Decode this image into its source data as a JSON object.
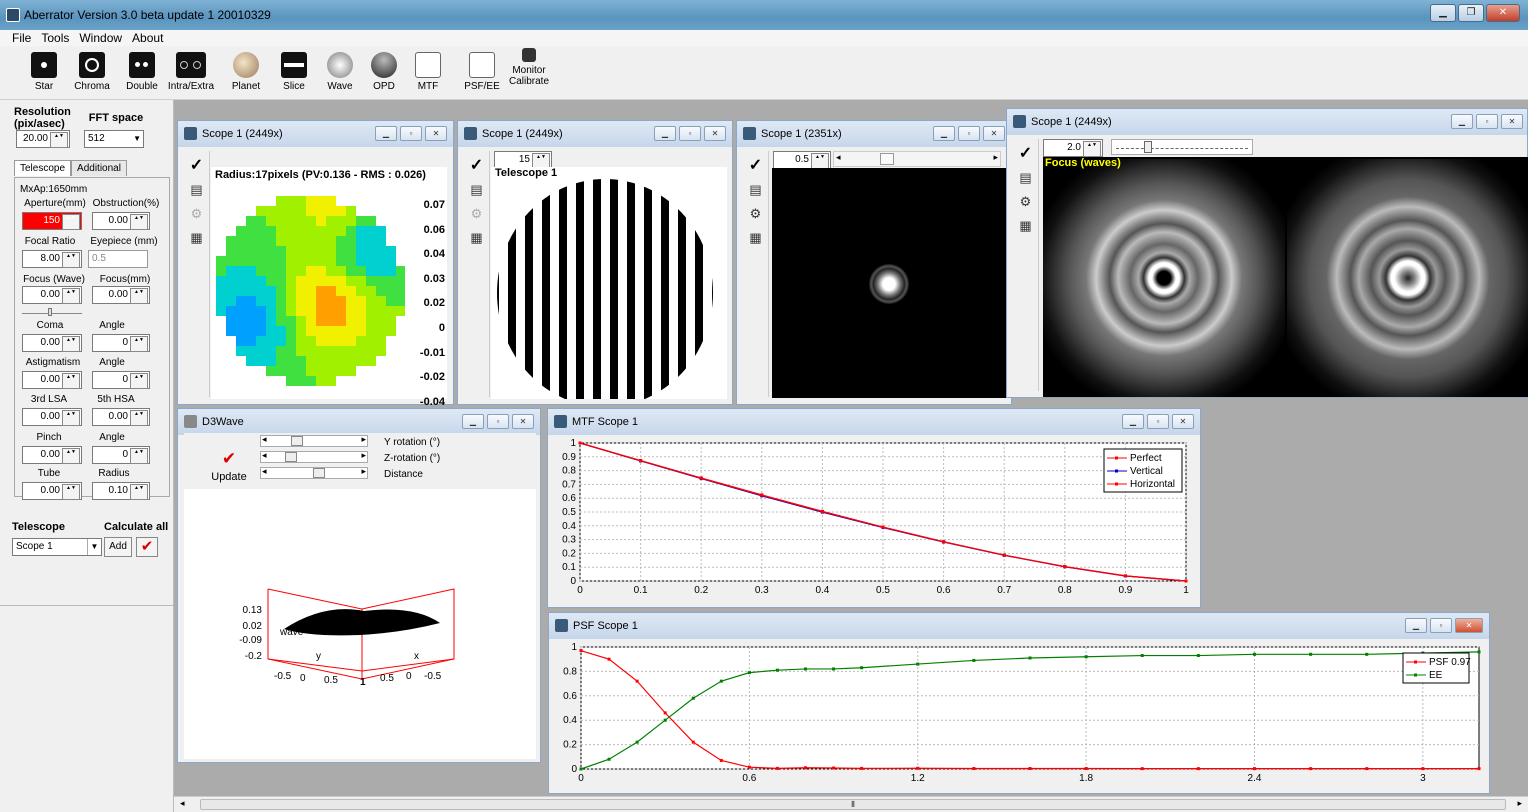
{
  "app": {
    "title": "Aberrator Version 3.0 beta update 1 20010329"
  },
  "menu": [
    "File",
    "Tools",
    "Window",
    "About"
  ],
  "toolbar": [
    "Star",
    "Chroma",
    "Double",
    "Intra/Extra",
    "Planet",
    "Slice",
    "Wave",
    "OPD",
    "MTF",
    "PSF/EE",
    "Monitor",
    "Calibrate"
  ],
  "left": {
    "resolution_label": "Resolution (pix/asec)",
    "resolution_value": "20.00",
    "fft_label": "FFT space",
    "fft_value": "512",
    "tabs": [
      "Telescope",
      "Additional"
    ],
    "maxap": "MxAp:1650mm",
    "aperture_label": "Aperture(mm)",
    "aperture_value": "150",
    "obstruction_label": "Obstruction(%)",
    "obstruction_value": "0.00",
    "focal_label": "Focal Ratio",
    "focal_value": "8.00",
    "eyepiece_label": "Eyepiece (mm)",
    "eyepiece_value": "0.5",
    "focusw_label": "Focus (Wave)",
    "focusw_value": "0.00",
    "focusmm_label": "Focus(mm)",
    "focusmm_value": "0.00",
    "coma_label": "Coma",
    "coma_value": "0.00",
    "angle1_label": "Angle",
    "angle1_value": "0",
    "astig_label": "Astigmatism",
    "astig_value": "0.00",
    "angle2_label": "Angle",
    "angle2_value": "0",
    "lsa_label": "3rd LSA",
    "lsa_value": "0.00",
    "hsa_label": "5th HSA",
    "hsa_value": "0.00",
    "pinch_label": "Pinch",
    "pinch_value": "0.00",
    "angle3_label": "Angle",
    "angle3_value": "0",
    "tube_label": "Tube",
    "tube_value": "0.00",
    "radius_label": "Radius",
    "radius_value": "0.10",
    "telescope_label": "Telescope",
    "calc_label": "Calculate all",
    "scope_select": "Scope 1",
    "add_label": "Add"
  },
  "win1": {
    "title": "Scope 1 (2449x)",
    "header": "Radius:17pixels (PV:0.136 - RMS : 0.026)",
    "scale": [
      "0.07",
      "0.06",
      "0.04",
      "0.03",
      "0.02",
      "0",
      "-0.01",
      "-0.02",
      "-0.04"
    ]
  },
  "win2": {
    "title": "Scope 1 (2449x)",
    "spin": "15",
    "label": "Telescope 1"
  },
  "win3": {
    "title": "Scope 1 (2351x)",
    "spin": "0.5"
  },
  "win4": {
    "title": "Scope 1 (2449x)",
    "spin": "2.0",
    "label": "Focus (waves)"
  },
  "d3wave": {
    "title": "D3Wave",
    "update_label": "Update",
    "sliders": [
      "Y rotation (°)",
      "Z-rotation (°)",
      "Distance"
    ],
    "zticks": [
      "0.13",
      "0.02",
      "-0.09",
      "-0.2"
    ],
    "zlabel": "wave",
    "ylabel": "y",
    "xlabel": "x",
    "yticks": [
      "-0.5",
      "0",
      "0.5"
    ],
    "xticks": [
      "0.5",
      "0",
      "-0.5"
    ],
    "center": "1"
  },
  "chart_data": [
    {
      "type": "line",
      "title": "MTF Scope 1",
      "x": [
        0,
        0.1,
        0.2,
        0.3,
        0.4,
        0.5,
        0.6,
        0.7,
        0.8,
        0.9,
        1.0
      ],
      "xlim": [
        0,
        1
      ],
      "ylim": [
        0,
        1
      ],
      "xticks": [
        "0",
        "0.1",
        "0.2",
        "0.3",
        "0.4",
        "0.5",
        "0.6",
        "0.7",
        "0.8",
        "0.9",
        "1"
      ],
      "yticks": [
        "0",
        "0.1",
        "0.2",
        "0.3",
        "0.4",
        "0.5",
        "0.6",
        "0.7",
        "0.8",
        "0.9",
        "1"
      ],
      "legend": "top-right",
      "series": [
        {
          "name": "Perfect",
          "color": "#ff0000",
          "values": [
            1.0,
            0.873,
            0.747,
            0.624,
            0.505,
            0.391,
            0.285,
            0.188,
            0.104,
            0.037,
            0.0
          ]
        },
        {
          "name": "Vertical",
          "color": "#0000cc",
          "values": [
            1.0,
            0.87,
            0.742,
            0.617,
            0.499,
            0.387,
            0.282,
            0.186,
            0.103,
            0.036,
            0.0
          ]
        },
        {
          "name": "Horizontal",
          "color": "#ff0000",
          "values": [
            1.0,
            0.872,
            0.745,
            0.622,
            0.503,
            0.39,
            0.284,
            0.187,
            0.104,
            0.037,
            0.0
          ]
        }
      ]
    },
    {
      "type": "line",
      "title": "PSF Scope 1",
      "x": [
        0,
        0.1,
        0.2,
        0.3,
        0.4,
        0.5,
        0.6,
        0.7,
        0.8,
        0.9,
        1.0,
        1.2,
        1.4,
        1.6,
        1.8,
        2.0,
        2.2,
        2.4,
        2.6,
        2.8,
        3.0,
        3.2
      ],
      "xlim": [
        0,
        3.2
      ],
      "ylim": [
        0,
        1
      ],
      "xticks": [
        "0",
        "0.6",
        "1.2",
        "1.8",
        "2.4",
        "3"
      ],
      "yticks": [
        "0",
        "0.2",
        "0.4",
        "0.6",
        "0.8",
        "1"
      ],
      "legend": "top-right",
      "series": [
        {
          "name": "PSF 0.97",
          "color": "#ff0000",
          "values": [
            0.97,
            0.9,
            0.72,
            0.46,
            0.22,
            0.07,
            0.015,
            0.005,
            0.01,
            0.008,
            0.005,
            0.006,
            0.004,
            0.004,
            0.004,
            0.003,
            0.003,
            0.003,
            0.003,
            0.003,
            0.003,
            0.003
          ]
        },
        {
          "name": "EE",
          "color": "#008000",
          "values": [
            0.0,
            0.08,
            0.22,
            0.4,
            0.58,
            0.72,
            0.79,
            0.81,
            0.82,
            0.82,
            0.83,
            0.86,
            0.89,
            0.91,
            0.92,
            0.93,
            0.93,
            0.94,
            0.94,
            0.94,
            0.95,
            0.96
          ]
        }
      ]
    }
  ]
}
